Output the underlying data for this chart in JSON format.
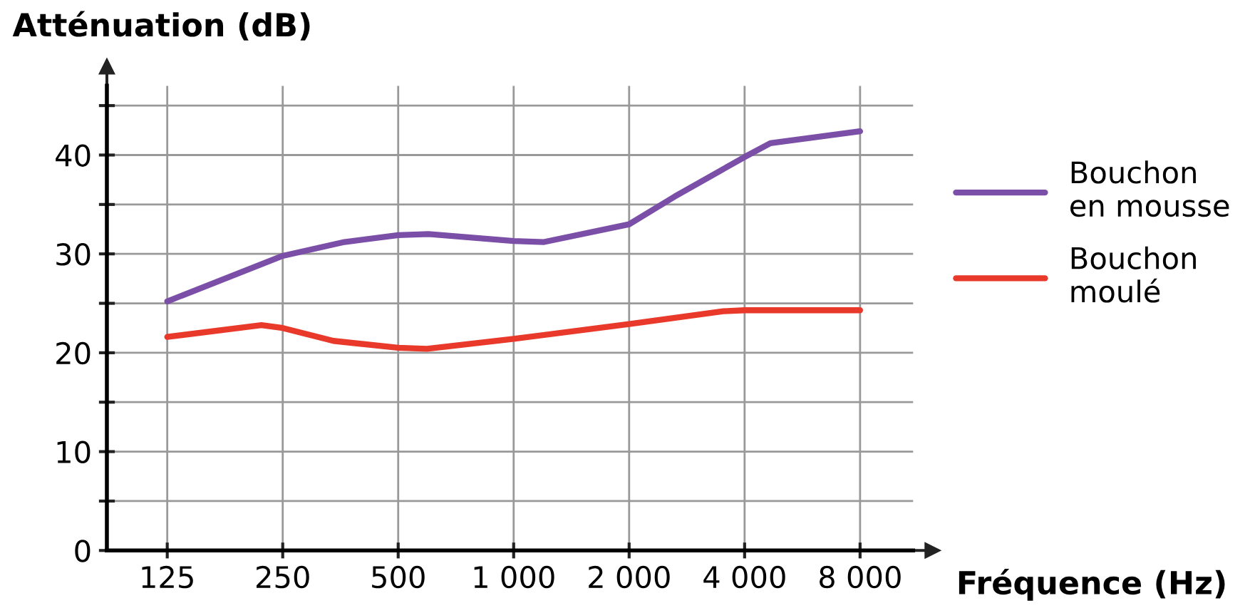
{
  "chart_data": {
    "type": "line",
    "ylabel": "Atténuation (dB)",
    "xlabel": "Fréquence (Hz)",
    "log": "x",
    "xlim": [
      87,
      11000
    ],
    "ylim": [
      0,
      47
    ],
    "xticks": [
      125,
      250,
      500,
      {
        "value": 1000,
        "label": "1 000"
      },
      {
        "value": 2000,
        "label": "2 000"
      },
      {
        "value": 4000,
        "label": "4 000"
      },
      {
        "value": 8000,
        "label": "8 000"
      }
    ],
    "yticks": [
      0,
      {
        "value": 5,
        "label": null
      },
      10,
      {
        "value": 15,
        "label": null
      },
      20,
      {
        "value": 25,
        "label": null
      },
      30,
      {
        "value": 35,
        "label": null
      },
      40,
      {
        "value": 45,
        "label": null
      }
    ],
    "grid": true,
    "legend": "right",
    "line_style": "solid",
    "marker": "none",
    "series": [
      {
        "name": "Bouchon\nen mousse",
        "color": "#7b4fa8",
        "x": [
          125,
          250,
          362,
          500,
          600,
          1000,
          1200,
          2000,
          2630,
          4000,
          4670,
          8000
        ],
        "values": [
          25.2,
          29.8,
          31.2,
          31.9,
          32,
          31.3,
          31.2,
          33,
          35.8,
          39.8,
          41.2,
          42.4
        ]
      },
      {
        "name": "Bouchon\nmoulé",
        "color": "#e8392b",
        "x": [
          125,
          220,
          250,
          339,
          500,
          594,
          1000,
          2000,
          3520,
          4000,
          8000
        ],
        "values": [
          21.6,
          22.8,
          22.5,
          21.2,
          20.5,
          20.4,
          21.4,
          22.9,
          24.2,
          24.3,
          24.3
        ]
      }
    ]
  }
}
